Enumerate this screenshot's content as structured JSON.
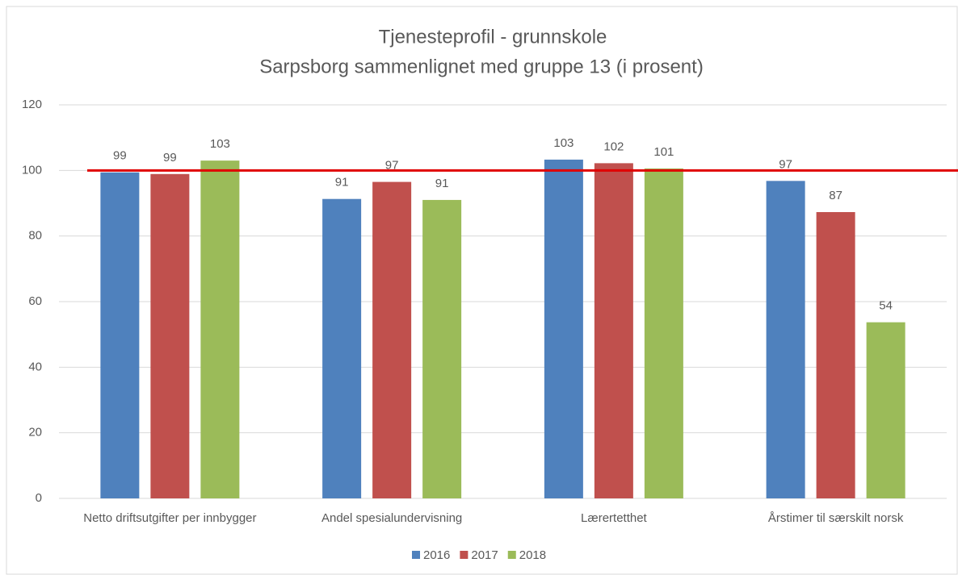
{
  "chart_data": {
    "type": "bar",
    "title": [
      "Tjenesteprofil - grunnskole",
      "Sarpsborg sammenlignet med gruppe 13 (i prosent)"
    ],
    "categories": [
      "Netto driftsutgifter per innbygger",
      "Andel spesialundervisning",
      "Lærertetthet",
      "Årstimer til særskilt norsk"
    ],
    "series": [
      {
        "name": "2016",
        "color": "#4f81bd",
        "values": [
          99.4,
          91.3,
          103.3,
          96.8
        ],
        "value_labels": [
          "99",
          "91",
          "103",
          "97"
        ]
      },
      {
        "name": "2017",
        "color": "#c0504d",
        "values": [
          98.9,
          96.5,
          102.2,
          87.3
        ],
        "value_labels": [
          "99",
          "97",
          "102",
          "87"
        ]
      },
      {
        "name": "2018",
        "color": "#9bbb59",
        "values": [
          103,
          91,
          100.6,
          53.7
        ],
        "value_labels": [
          "103",
          "91",
          "101",
          "54"
        ]
      }
    ],
    "ylim": [
      0,
      120
    ],
    "yticks": [
      0,
      20,
      40,
      60,
      80,
      100,
      120
    ],
    "grid": true,
    "legend": "bottom",
    "reference_line": {
      "value": 100,
      "color": "#e00000"
    }
  }
}
